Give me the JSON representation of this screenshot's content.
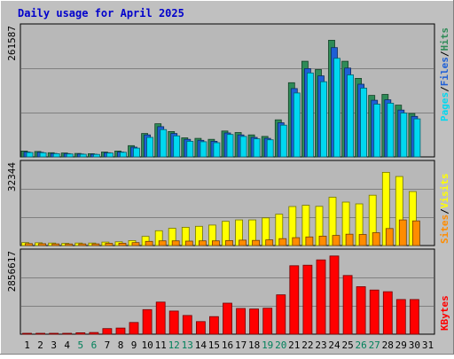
{
  "chart_data": {
    "type": "bar",
    "title": "Daily usage for April 2025",
    "categories": [
      "1",
      "2",
      "3",
      "4",
      "5",
      "6",
      "7",
      "8",
      "9",
      "10",
      "11",
      "12",
      "13",
      "14",
      "15",
      "16",
      "17",
      "18",
      "19",
      "20",
      "21",
      "22",
      "23",
      "24",
      "25",
      "26",
      "27",
      "28",
      "29",
      "30",
      "31"
    ],
    "weekend_days": [
      "5",
      "6",
      "12",
      "13",
      "19",
      "20",
      "26",
      "27"
    ],
    "colors": {
      "hits": "#2e8b57",
      "files": "#1e5fd6",
      "pages": "#00d8f0",
      "visits": "#ffff00",
      "sites": "#ff8c00",
      "kbytes": "#ff0000",
      "weekend_label": "#00805a",
      "title": "#0000cc"
    },
    "panels": [
      {
        "id": "hits-files-pages",
        "ymax_label": "261587",
        "ylim": [
          0,
          261587
        ],
        "series": [
          {
            "name": "Hits",
            "values": [
              12000,
              11000,
              8500,
              8000,
              7000,
              6500,
              10000,
              12000,
              23000,
              48000,
              68000,
              52000,
              39000,
              38000,
              36000,
              53000,
              50000,
              45000,
              42000,
              76000,
              152000,
              196000,
              179000,
              239000,
              196000,
              161000,
              126000,
              128000,
              106000,
              89000,
              0
            ]
          },
          {
            "name": "Files",
            "values": [
              10000,
              9500,
              7000,
              6800,
              6000,
              5500,
              8500,
              10000,
              20000,
              45000,
              62000,
              48000,
              36000,
              34000,
              32000,
              49000,
              45000,
              40000,
              38000,
              70000,
              140000,
              181000,
              166000,
              224000,
              182000,
              149000,
              116000,
              117000,
              96000,
              83000,
              0
            ]
          },
          {
            "name": "Pages",
            "values": [
              9000,
              8500,
              6500,
              6000,
              5500,
              5000,
              8000,
              9500,
              18000,
              40000,
              56000,
              43000,
              32000,
              31000,
              29000,
              46000,
              42000,
              37000,
              35000,
              65000,
              131000,
              172000,
              154000,
              202000,
              168000,
              141000,
              108000,
              110000,
              90000,
              78000,
              0
            ]
          }
        ]
      },
      {
        "id": "visits-sites",
        "ymax_label": "32344",
        "ylim": [
          0,
          32344
        ],
        "series": [
          {
            "name": "Visits",
            "values": [
              1200,
              1100,
              1000,
              900,
              1000,
              1000,
              1400,
              1500,
              2000,
              3700,
              6000,
              7000,
              7400,
              7800,
              8300,
              9800,
              10400,
              10400,
              11200,
              12700,
              15800,
              16300,
              15900,
              19600,
              17600,
              16900,
              20400,
              29700,
              28000,
              21900,
              0
            ]
          },
          {
            "name": "Sites",
            "values": [
              800,
              750,
              700,
              650,
              700,
              700,
              900,
              950,
              1200,
              1700,
              1900,
              1900,
              1800,
              1900,
              1900,
              2000,
              2200,
              2100,
              2300,
              2800,
              3200,
              3500,
              3800,
              4100,
              4600,
              4500,
              5200,
              6900,
              10400,
              10000,
              0
            ]
          }
        ]
      },
      {
        "id": "kbytes",
        "ymax_label": "2856617",
        "ylim": [
          0,
          2856617
        ],
        "series": [
          {
            "name": "KBytes",
            "values": [
              20000,
              20000,
              20000,
              20000,
              50000,
              60000,
              200000,
              220000,
              420000,
              880000,
              1150000,
              830000,
              670000,
              450000,
              630000,
              1110000,
              920000,
              900000,
              930000,
              1410000,
              2450000,
              2470000,
              2660000,
              2800000,
              2100000,
              1700000,
              1580000,
              1520000,
              1240000,
              1240000,
              0
            ]
          }
        ]
      }
    ],
    "legends": {
      "top": [
        {
          "name": "Pages",
          "color": "#00d8f0"
        },
        {
          "name": "Files",
          "color": "#1e5fd6"
        },
        {
          "name": "Hits",
          "color": "#2e8b57"
        }
      ],
      "middle": [
        {
          "name": "Sites",
          "color": "#ff8c00"
        },
        {
          "name": "Visits",
          "color": "#ffff00"
        }
      ],
      "bottom": [
        {
          "name": "KBytes",
          "color": "#ff0000"
        }
      ]
    }
  }
}
